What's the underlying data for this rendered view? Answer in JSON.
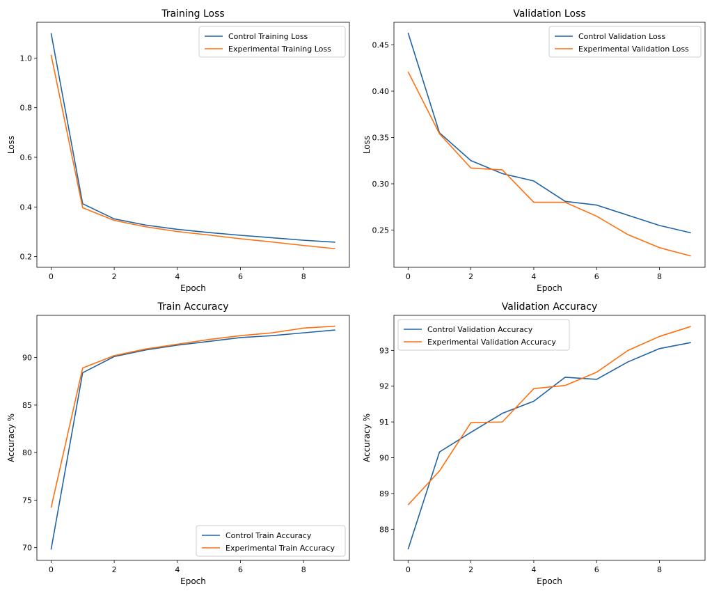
{
  "chart_data": [
    {
      "type": "line",
      "title": "Training Loss",
      "xlabel": "Epoch",
      "ylabel": "Loss",
      "xlim": [
        -0.45,
        9.45
      ],
      "ylim": [
        0.157,
        1.144
      ],
      "xticks": [
        0,
        2,
        4,
        6,
        8
      ],
      "yticks": [
        0.2,
        0.4,
        0.6,
        0.8,
        1.0
      ],
      "ytick_labels": [
        "0.2",
        "0.4",
        "0.6",
        "0.8",
        "1.0"
      ],
      "legend": "top-right",
      "x": [
        0,
        1,
        2,
        3,
        4,
        5,
        6,
        7,
        8,
        9
      ],
      "series": [
        {
          "name": "Control Training Loss",
          "color": "#1f63a5",
          "values": [
            1.1,
            0.413,
            0.352,
            0.327,
            0.31,
            0.297,
            0.286,
            0.276,
            0.266,
            0.258
          ]
        },
        {
          "name": "Experimental Training Loss",
          "color": "#ff6f0e",
          "values": [
            1.013,
            0.397,
            0.346,
            0.32,
            0.301,
            0.287,
            0.272,
            0.259,
            0.245,
            0.232
          ]
        }
      ]
    },
    {
      "type": "line",
      "title": "Validation Loss",
      "xlabel": "Epoch",
      "ylabel": "Loss",
      "xlim": [
        -0.45,
        9.45
      ],
      "ylim": [
        0.2098,
        0.4744
      ],
      "xticks": [
        0,
        2,
        4,
        6,
        8
      ],
      "yticks": [
        0.25,
        0.3,
        0.35,
        0.4,
        0.45
      ],
      "ytick_labels": [
        "0.25",
        "0.30",
        "0.35",
        "0.40",
        "0.45"
      ],
      "legend": "top-right",
      "x": [
        0,
        1,
        2,
        3,
        4,
        5,
        6,
        7,
        8,
        9
      ],
      "series": [
        {
          "name": "Control Validation Loss",
          "color": "#1f63a5",
          "values": [
            0.463,
            0.355,
            0.325,
            0.311,
            0.303,
            0.281,
            0.277,
            0.266,
            0.255,
            0.247
          ]
        },
        {
          "name": "Experimental Validation Loss",
          "color": "#ff6f0e",
          "values": [
            0.421,
            0.354,
            0.317,
            0.315,
            0.28,
            0.28,
            0.265,
            0.245,
            0.231,
            0.222
          ]
        }
      ]
    },
    {
      "type": "line",
      "title": "Train Accuracy",
      "xlabel": "Epoch",
      "ylabel": "Accuracy %",
      "xlim": [
        -0.45,
        9.45
      ],
      "ylim": [
        68.66,
        94.44
      ],
      "xticks": [
        0,
        2,
        4,
        6,
        8
      ],
      "yticks": [
        70,
        75,
        80,
        85,
        90
      ],
      "ytick_labels": [
        "70",
        "75",
        "80",
        "85",
        "90"
      ],
      "legend": "bottom-right",
      "x": [
        0,
        1,
        2,
        3,
        4,
        5,
        6,
        7,
        8,
        9
      ],
      "series": [
        {
          "name": "Control Train Accuracy",
          "color": "#1f63a5",
          "values": [
            69.8,
            88.4,
            90.1,
            90.8,
            91.3,
            91.7,
            92.1,
            92.3,
            92.6,
            92.9
          ]
        },
        {
          "name": "Experimental Train Accuracy",
          "color": "#ff6f0e",
          "values": [
            74.2,
            88.9,
            90.2,
            90.9,
            91.4,
            91.9,
            92.3,
            92.6,
            93.1,
            93.3
          ]
        }
      ]
    },
    {
      "type": "line",
      "title": "Validation Accuracy",
      "xlabel": "Epoch",
      "ylabel": "Accuracy %",
      "xlim": [
        -0.45,
        9.45
      ],
      "ylim": [
        87.13,
        93.98
      ],
      "xticks": [
        0,
        2,
        4,
        6,
        8
      ],
      "yticks": [
        88,
        89,
        90,
        91,
        92,
        93
      ],
      "ytick_labels": [
        "88",
        "89",
        "90",
        "91",
        "92",
        "93"
      ],
      "legend": "top-left",
      "x": [
        0,
        1,
        2,
        3,
        4,
        5,
        6,
        7,
        8,
        9
      ],
      "series": [
        {
          "name": "Control Validation Accuracy",
          "color": "#1f63a5",
          "values": [
            87.44,
            90.16,
            90.71,
            91.24,
            91.58,
            92.25,
            92.19,
            92.68,
            93.05,
            93.22
          ]
        },
        {
          "name": "Experimental Validation Accuracy",
          "color": "#ff6f0e",
          "values": [
            88.68,
            89.63,
            90.98,
            91.0,
            91.93,
            92.02,
            92.39,
            93.0,
            93.39,
            93.67
          ]
        }
      ]
    }
  ]
}
